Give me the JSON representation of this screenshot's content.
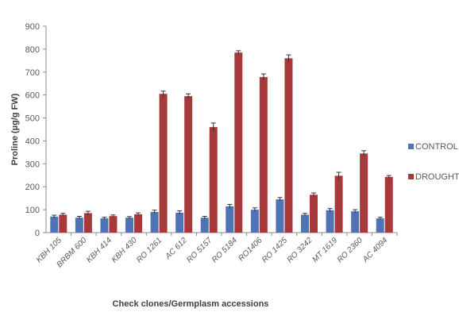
{
  "chart_data": {
    "type": "bar",
    "categories": [
      "KBH 105",
      "BRBM 600",
      "KBH 414",
      "KBH 430",
      "RO 1261",
      "AC 612",
      "RO 5157",
      "RO 5184",
      "RO1406",
      "RO 1425",
      "RO 3242",
      "MT 1619",
      "RO 2360",
      "AC 4094"
    ],
    "series": [
      {
        "name": "CONTROL",
        "color": "#4f73b5",
        "values": [
          70,
          65,
          62,
          65,
          90,
          87,
          65,
          115,
          100,
          145,
          78,
          98,
          93,
          62
        ],
        "errors": [
          6,
          6,
          5,
          5,
          8,
          8,
          6,
          8,
          8,
          8,
          6,
          7,
          7,
          5
        ]
      },
      {
        "name": "DROUGHT",
        "color": "#a8393a",
        "values": [
          78,
          85,
          72,
          80,
          605,
          595,
          460,
          785,
          678,
          760,
          165,
          248,
          345,
          243
        ],
        "errors": [
          6,
          8,
          5,
          6,
          12,
          10,
          18,
          8,
          14,
          15,
          8,
          15,
          12,
          6
        ]
      }
    ],
    "xlabel": "Check clones/Germplasm accessions",
    "ylabel": "Proline (µg/g FW)",
    "ylim": [
      0,
      900
    ],
    "yticks": [
      0,
      100,
      200,
      300,
      400,
      500,
      600,
      700,
      800,
      900
    ],
    "grid": false,
    "legend_position": "right"
  }
}
